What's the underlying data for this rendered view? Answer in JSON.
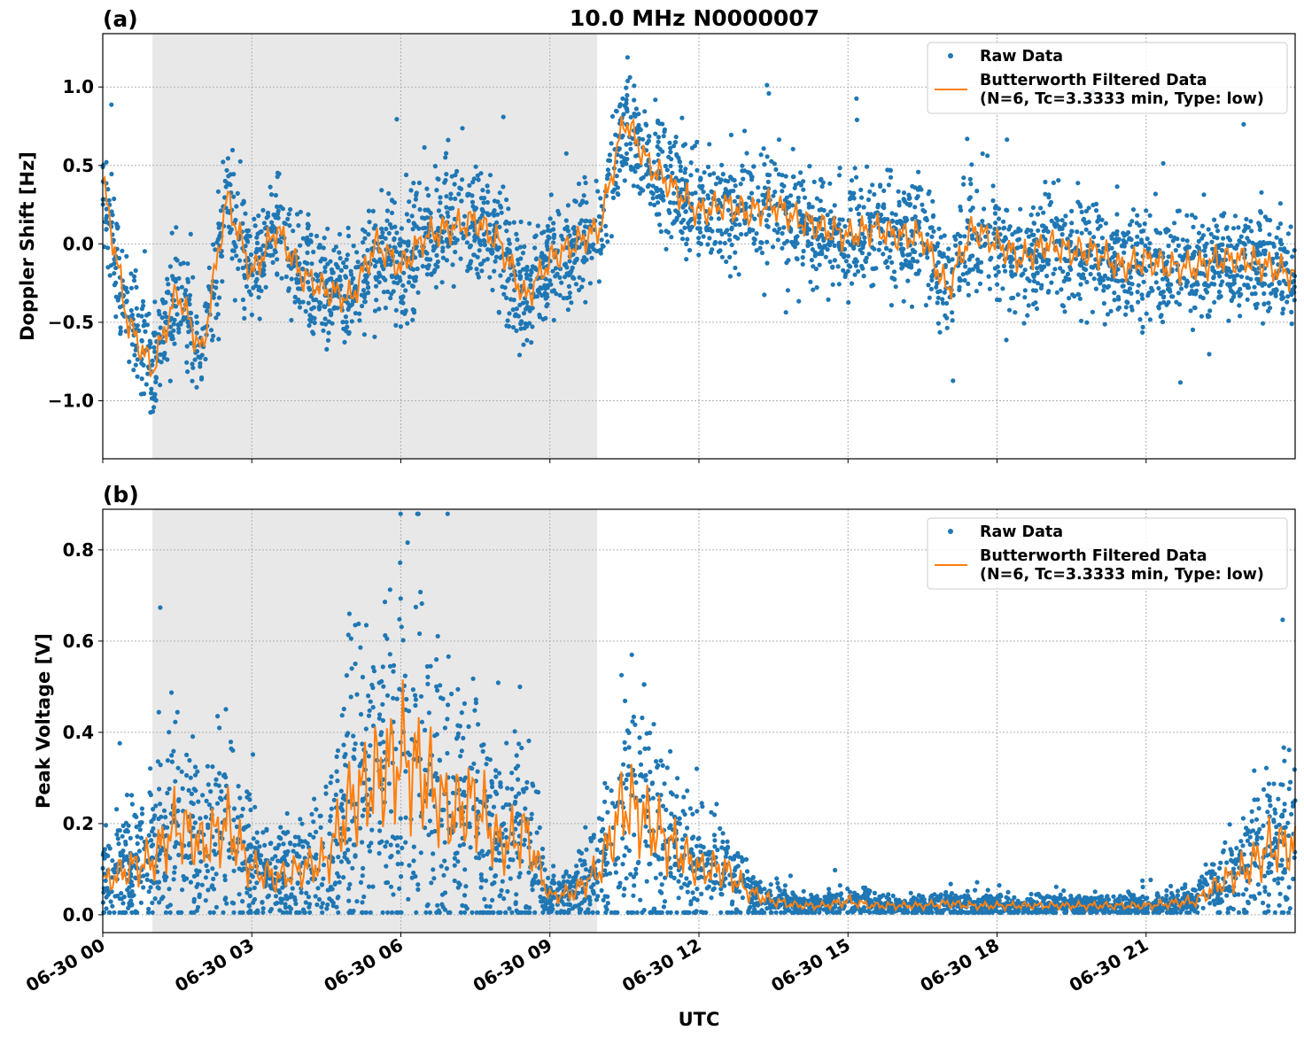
{
  "chart_data": {
    "type": "scatter+line",
    "title": "10.0 MHz N0000007",
    "xlabel": "UTC",
    "x_unit": "hours since 06-30 00",
    "xlim": [
      0,
      24
    ],
    "x_ticks": [
      0,
      3,
      6,
      9,
      12,
      15,
      18,
      21
    ],
    "x_tick_labels": [
      "06-30 00",
      "06-30 03",
      "06-30 06",
      "06-30 09",
      "06-30 12",
      "06-30 15",
      "06-30 18",
      "06-30 21"
    ],
    "shaded_interval_hours": [
      1.0,
      9.95
    ],
    "grid": true,
    "colors": {
      "raw": "#1f77b4",
      "filtered": "#ff7f0e",
      "shade": "#e8e8e8"
    },
    "panels": [
      {
        "label": "(a)",
        "ylabel": "Doppler Shift [Hz]",
        "ylim": [
          -1.37,
          1.34
        ],
        "y_ticks": [
          -1.0,
          -0.5,
          0.0,
          0.5,
          1.0
        ],
        "y_tick_labels": [
          "−1.0",
          "−0.5",
          "0.0",
          "0.5",
          "1.0"
        ],
        "legend": {
          "placement": "top-right",
          "raw": "Raw Data",
          "filtered_line1": "Butterworth Filtered Data",
          "filtered_line2": "(N=6, Tc=3.3333 min, Type: low)"
        },
        "filtered_step_hours": 0.5,
        "filtered": [
          0.4,
          -0.5,
          -0.8,
          -0.3,
          -0.7,
          0.3,
          -0.2,
          0.1,
          -0.2,
          -0.3,
          -0.35,
          0.0,
          -0.15,
          0.05,
          0.1,
          0.15,
          0.0,
          -0.35,
          -0.1,
          0.0,
          0.1,
          0.8,
          0.5,
          0.35,
          0.2,
          0.25,
          0.2,
          0.25,
          0.15,
          0.1,
          0.05,
          0.1,
          0.05,
          0.05,
          -0.3,
          0.1,
          0.0,
          -0.1,
          0.0,
          -0.05,
          -0.05,
          -0.15,
          -0.1,
          -0.15,
          -0.15,
          -0.1,
          -0.1,
          -0.15,
          -0.2
        ],
        "raw_spread": 0.22
      },
      {
        "label": "(b)",
        "ylabel": "Peak Voltage [V]",
        "ylim": [
          -0.039,
          0.889
        ],
        "y_ticks": [
          0.0,
          0.2,
          0.4,
          0.6,
          0.8
        ],
        "y_tick_labels": [
          "0.0",
          "0.2",
          "0.4",
          "0.6",
          "0.8"
        ],
        "legend": {
          "placement": "top-right",
          "raw": "Raw Data",
          "filtered_line1": "Butterworth Filtered Data",
          "filtered_line2": "(N=6, Tc=3.3333 min, Type: low)"
        },
        "filtered_step_hours": 0.5,
        "filtered": [
          0.07,
          0.1,
          0.12,
          0.2,
          0.15,
          0.2,
          0.1,
          0.08,
          0.1,
          0.12,
          0.25,
          0.3,
          0.35,
          0.3,
          0.22,
          0.25,
          0.15,
          0.18,
          0.04,
          0.05,
          0.1,
          0.25,
          0.2,
          0.15,
          0.1,
          0.1,
          0.05,
          0.03,
          0.02,
          0.02,
          0.03,
          0.02,
          0.02,
          0.02,
          0.025,
          0.02,
          0.02,
          0.02,
          0.02,
          0.02,
          0.02,
          0.02,
          0.02,
          0.025,
          0.03,
          0.07,
          0.1,
          0.15,
          0.15
        ],
        "raw_spread_relative": 0.8
      }
    ]
  }
}
